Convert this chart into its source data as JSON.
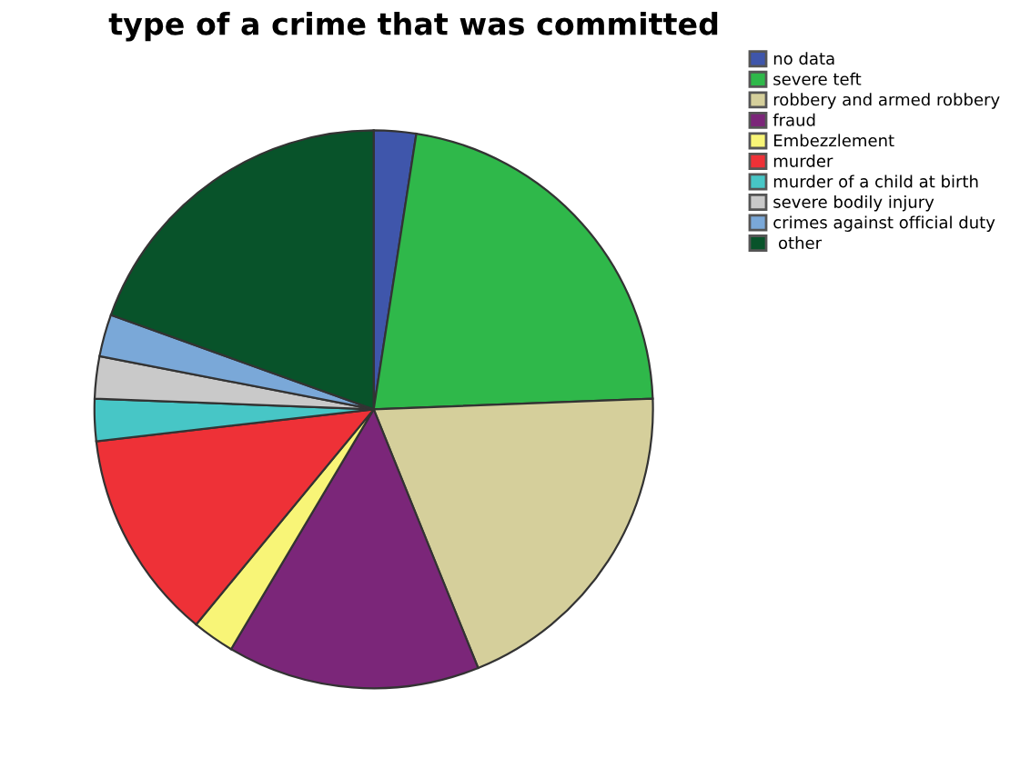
{
  "chart_data": {
    "type": "pie",
    "title": "type of a crime that was committed",
    "categories": [
      "no data",
      "severe teft",
      "robbery and armed robbery",
      "fraud",
      "Embezzlement",
      "murder",
      "murder of a child at birth",
      "severe bodily injury",
      "crimes against official duty",
      " other"
    ],
    "values": [
      2.44,
      21.95,
      19.51,
      14.63,
      2.44,
      12.2,
      2.44,
      2.44,
      2.44,
      19.51
    ],
    "colors": [
      "#3f56ab",
      "#2fb84a",
      "#d5cf9b",
      "#7b2679",
      "#f8f577",
      "#ee3137",
      "#47c6c6",
      "#c9c9c9",
      "#7aa8d8",
      "#08532a"
    ],
    "legend": "top right"
  }
}
